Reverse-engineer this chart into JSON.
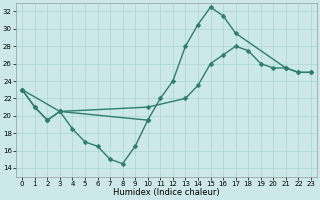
{
  "xlabel": "Humidex (Indice chaleur)",
  "bg_color": "#cce8e8",
  "grid_color": "#aad4d4",
  "line_color": "#2e7d6e",
  "markersize": 2.5,
  "linewidth": 1.0,
  "xlim": [
    -0.5,
    23.5
  ],
  "ylim": [
    13.0,
    33.0
  ],
  "yticks": [
    14,
    16,
    18,
    20,
    22,
    24,
    26,
    28,
    30,
    32
  ],
  "xticks": [
    0,
    1,
    2,
    3,
    4,
    5,
    6,
    7,
    8,
    9,
    10,
    11,
    12,
    13,
    14,
    15,
    16,
    17,
    18,
    19,
    20,
    21,
    22,
    23
  ],
  "line1_x": [
    0,
    1,
    2,
    3,
    4,
    5,
    6,
    7,
    8,
    9,
    10
  ],
  "line1_y": [
    23.0,
    21.0,
    19.5,
    20.5,
    18.5,
    17.0,
    16.5,
    15.0,
    14.5,
    16.5,
    19.5
  ],
  "line2_x": [
    0,
    1,
    2,
    3,
    10,
    11,
    12,
    13,
    14,
    15,
    16,
    17,
    21,
    22,
    23
  ],
  "line2_y": [
    23.0,
    21.0,
    19.5,
    20.5,
    19.5,
    22.0,
    24.0,
    28.0,
    30.5,
    32.5,
    31.5,
    29.5,
    25.5,
    25.0,
    25.0
  ],
  "line3_x": [
    0,
    3,
    10,
    13,
    14,
    15,
    16,
    17,
    18,
    19,
    20,
    21,
    22,
    23
  ],
  "line3_y": [
    23.0,
    20.5,
    21.0,
    22.0,
    23.5,
    26.0,
    27.0,
    28.0,
    27.5,
    26.0,
    25.5,
    25.5,
    25.0,
    25.0
  ],
  "tick_labelsize": 5,
  "xlabel_fontsize": 6
}
